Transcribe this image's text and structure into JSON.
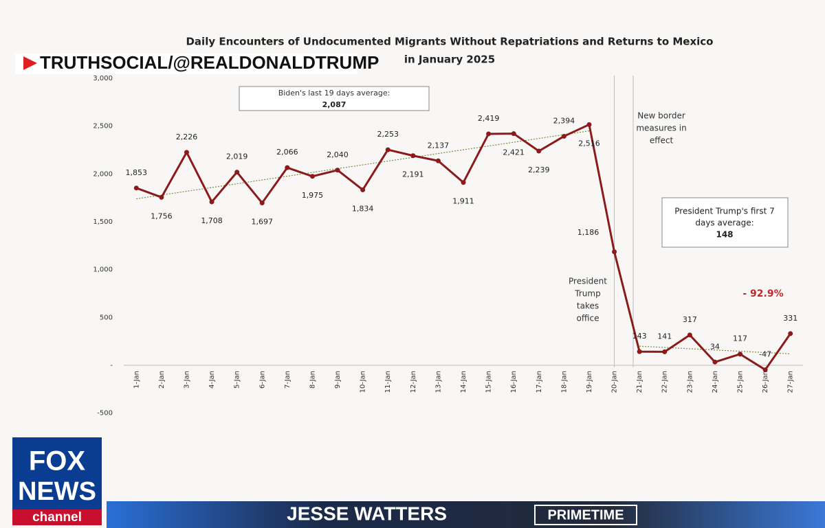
{
  "chart_data": {
    "type": "line",
    "title": [
      "Daily Encounters of Undocumented Migrants Without Repatriations and Returns to Mexico",
      "in January 2025"
    ],
    "categories": [
      "1-Jan",
      "2-Jan",
      "3-Jan",
      "4-Jan",
      "5-Jan",
      "6-Jan",
      "7-Jan",
      "8-Jan",
      "9-Jan",
      "10-Jan",
      "11-Jan",
      "12-Jan",
      "13-Jan",
      "14-Jan",
      "15-Jan",
      "16-Jan",
      "17-Jan",
      "18-Jan",
      "19-Jan",
      "20-Jan",
      "21-Jan",
      "22-Jan",
      "23-Jan",
      "24-Jan",
      "25-Jan",
      "26-Jan",
      "27-Jan"
    ],
    "values": [
      1853,
      1756,
      2226,
      1708,
      2019,
      1697,
      2066,
      1975,
      2040,
      1834,
      2253,
      2191,
      2137,
      1911,
      2419,
      2421,
      2239,
      2394,
      2516,
      1186,
      143,
      141,
      317,
      34,
      117,
      -47,
      331
    ],
    "value_labels": [
      "1,853",
      "1,756",
      "2,226",
      "1,708",
      "2,019",
      "1,697",
      "2,066",
      "1,975",
      "2,040",
      "1,834",
      "2,253",
      "2,191",
      "2,137",
      "1,911",
      "2,419",
      "2,421",
      "2,239",
      "2,394",
      "2,516",
      "1,186",
      "143",
      "141",
      "317",
      "34",
      "117",
      "-47",
      "331"
    ],
    "color": "#8b1a1a",
    "ylim": [
      -500,
      3000
    ],
    "yticks": [
      {
        "value": -500,
        "label": "-500"
      },
      {
        "value": 0,
        "label": "-"
      },
      500,
      {
        "value": 1000,
        "label": "1,000"
      },
      {
        "value": 1500,
        "label": "1,500"
      },
      {
        "value": 2000,
        "label": "2,000"
      },
      {
        "value": 2500,
        "label": "2,500"
      },
      {
        "value": 3000,
        "label": "3,000"
      }
    ],
    "trend_lines": [
      {
        "x": [
          "1-Jan",
          "19-Jan"
        ],
        "values": [
          1740,
          2450
        ]
      },
      {
        "x": [
          "21-Jan",
          "27-Jan"
        ],
        "values": [
          200,
          120
        ]
      }
    ],
    "annotations": {
      "biden_box": [
        "Biden's last 19 days average:",
        "2,087"
      ],
      "trump_box": [
        "President Trump's first 7",
        "days average:",
        "148"
      ],
      "change": "- 92.9%",
      "office": {
        "x": "20-Jan",
        "lines": [
          "President",
          "Trump",
          "takes",
          "office"
        ]
      },
      "border": {
        "x": "21-Jan",
        "lines": [
          "New border",
          "measures in",
          "effect"
        ]
      }
    }
  },
  "overlay": {
    "source": "TRUTHSOCIAL/@REALDONALDTRUMP",
    "logo": [
      "FOX",
      "NEWS",
      "channel"
    ],
    "show": "JESSE WATTERS",
    "show_tag": "PRIMETIME"
  }
}
